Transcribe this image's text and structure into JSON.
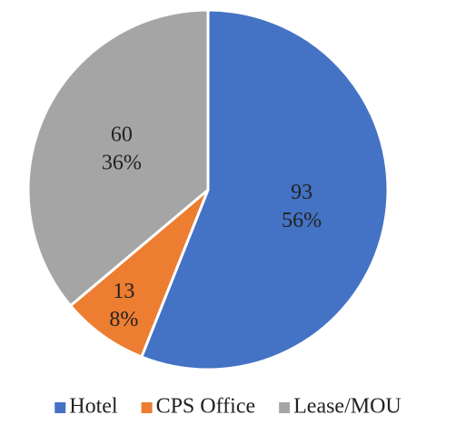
{
  "chart_data": {
    "type": "pie",
    "categories": [
      "Hotel",
      "CPS Office",
      "Lease/MOU"
    ],
    "values": [
      93,
      13,
      60
    ],
    "percent_labels": [
      "56%",
      "8%",
      "36%"
    ],
    "colors": [
      "#4472c4",
      "#ed7d31",
      "#a5a5a5"
    ],
    "legend": "bottom"
  }
}
